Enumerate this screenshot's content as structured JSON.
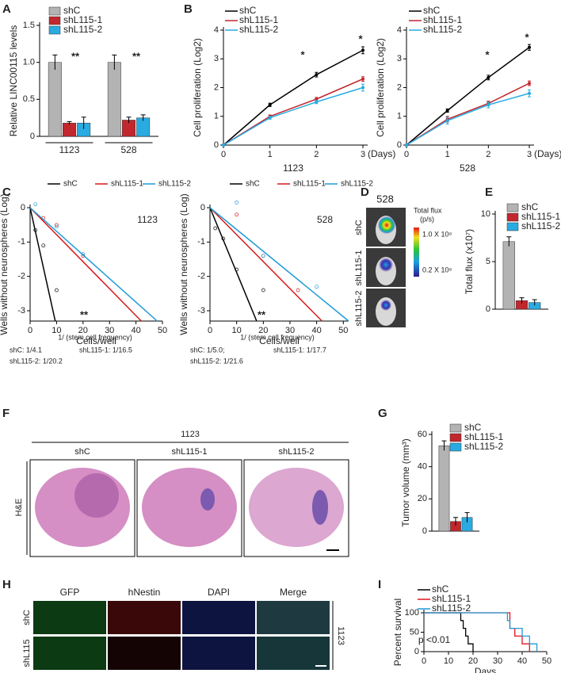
{
  "panel_labels": [
    "A",
    "B",
    "C",
    "D",
    "E",
    "F",
    "G",
    "H",
    "I"
  ],
  "chart_data": [
    {
      "type": "bar",
      "y_label": "Relative LINC00115 levels",
      "categories": [
        "1123",
        "528"
      ],
      "ylim": [
        0,
        1.5
      ],
      "yticks": [
        0,
        0.5,
        {
          "value": 1,
          "label": "1.0"
        },
        1.5
      ],
      "legend": "upper left",
      "annotations": [
        "**",
        "**"
      ],
      "series": [
        {
          "name": "shC",
          "color": "#b3b3b3",
          "values": [
            1.0,
            1.0
          ],
          "errors": [
            0.1,
            0.1
          ]
        },
        {
          "name": "shL115-1",
          "color": "#c1272d",
          "values": [
            0.18,
            0.22
          ],
          "errors": [
            0.02,
            0.04
          ]
        },
        {
          "name": "shL115-2",
          "color": "#29abe2",
          "values": [
            0.18,
            0.25
          ],
          "errors": [
            0.08,
            0.04
          ]
        }
      ]
    },
    {
      "type": "line",
      "y_label": "Cell proliferation (Log2)",
      "x_label": "(Days)",
      "subtitle": "1123",
      "x": [
        0,
        1,
        2,
        3
      ],
      "xlim": [
        0,
        3
      ],
      "xticks": [
        0,
        1,
        2,
        3
      ],
      "ylim": [
        0,
        4
      ],
      "yticks": [
        0,
        1,
        2,
        3,
        4
      ],
      "legend": "upper left",
      "annotations": [
        "*",
        "*"
      ],
      "series": [
        {
          "name": "shC",
          "color": "#000000",
          "values": [
            0,
            1.4,
            2.45,
            3.3
          ],
          "errors": [
            0,
            0.06,
            0.08,
            0.12
          ]
        },
        {
          "name": "shL115-1",
          "color": "#c1272d",
          "values": [
            0,
            1.0,
            1.6,
            2.3
          ],
          "errors": [
            0,
            0.05,
            0.06,
            0.08
          ]
        },
        {
          "name": "shL115-2",
          "color": "#29abe2",
          "values": [
            0,
            0.95,
            1.5,
            2.0
          ],
          "errors": [
            0,
            0.05,
            0.06,
            0.12
          ]
        }
      ]
    },
    {
      "type": "line",
      "y_label": "Cell proliferation (Log2)",
      "x_label": "(Days)",
      "subtitle": "528",
      "x": [
        0,
        1,
        2,
        3
      ],
      "xlim": [
        0,
        3
      ],
      "xticks": [
        0,
        1,
        2,
        3
      ],
      "ylim": [
        0,
        4
      ],
      "yticks": [
        0,
        1,
        2,
        3,
        4
      ],
      "legend": "upper left",
      "annotations": [
        "*",
        "*"
      ],
      "series": [
        {
          "name": "shC",
          "color": "#000000",
          "values": [
            0,
            1.2,
            2.35,
            3.4
          ],
          "errors": [
            0,
            0.06,
            0.08,
            0.1
          ]
        },
        {
          "name": "shL115-1",
          "color": "#c1272d",
          "values": [
            0,
            0.9,
            1.45,
            2.15
          ],
          "errors": [
            0,
            0.1,
            0.08,
            0.08
          ]
        },
        {
          "name": "shL115-2",
          "color": "#29abe2",
          "values": [
            0,
            0.85,
            1.4,
            1.8
          ],
          "errors": [
            0,
            0.12,
            0.1,
            0.12
          ]
        }
      ]
    },
    {
      "type": "dilution",
      "y_label": "Wells without neurospheres (Log)",
      "x_label": "Cells/well",
      "subtitle": "1123",
      "xlim": [
        0,
        50
      ],
      "xticks": [
        0,
        10,
        20,
        30,
        40,
        50
      ],
      "ylim": [
        -3.3,
        0
      ],
      "yticks": [
        0,
        -1,
        -2,
        -3
      ],
      "legend": "top",
      "annotations": [
        "**"
      ],
      "notes": [
        "1/ (stem cell frequency)",
        "shC: 1/4.1",
        "shL115-1: 1/16.5",
        "shL115-2: 1/20.2"
      ],
      "series": [
        {
          "name": "shC",
          "color": "#000000",
          "x": [
            0,
            9.5
          ],
          "values": [
            0,
            -3.3
          ],
          "points_x": [
            2,
            5,
            10
          ],
          "points_values": [
            -0.65,
            -1.1,
            -2.4
          ]
        },
        {
          "name": "shL115-1",
          "color": "#d7191c",
          "x": [
            0,
            42
          ],
          "values": [
            0,
            -3.3
          ],
          "points_x": [
            5,
            10,
            20
          ],
          "points_values": [
            -0.3,
            -0.5,
            -1.4
          ]
        },
        {
          "name": "shL115-2",
          "color": "#1f9bd7",
          "x": [
            0,
            48
          ],
          "values": [
            0,
            -3.3
          ],
          "points_x": [
            2,
            10,
            20
          ],
          "points_values": [
            0.1,
            -0.55,
            -1.35
          ]
        }
      ]
    },
    {
      "type": "dilution",
      "y_label": "Wells without neurospheres (Log)",
      "x_label": "Cells/well",
      "subtitle": "528",
      "xlim": [
        0,
        52
      ],
      "xticks": [
        0,
        10,
        20,
        30,
        40,
        50
      ],
      "ylim": [
        -3.3,
        0
      ],
      "yticks": [
        0,
        -1,
        -2,
        -3
      ],
      "legend": "top",
      "annotations": [
        "**"
      ],
      "notes": [
        "1/ (stem cell frequency)",
        "shC: 1/5.0;",
        "shL115-1: 1/17.7",
        "shL115-2: 1/21.6"
      ],
      "series": [
        {
          "name": "shC",
          "color": "#000000",
          "x": [
            0,
            17.5
          ],
          "values": [
            0,
            -3.3
          ],
          "points_x": [
            2,
            5,
            10,
            20
          ],
          "points_values": [
            -0.6,
            -0.9,
            -1.8,
            -2.4
          ]
        },
        {
          "name": "shL115-1",
          "color": "#d7191c",
          "x": [
            0,
            42
          ],
          "values": [
            0,
            -3.3
          ],
          "points_x": [
            10,
            20,
            33
          ],
          "points_values": [
            -0.2,
            -1.4,
            -2.4
          ]
        },
        {
          "name": "shL115-2",
          "color": "#1f9bd7",
          "x": [
            0,
            52
          ],
          "values": [
            0,
            -3.3
          ],
          "points_x": [
            10,
            20,
            40
          ],
          "points_values": [
            0.15,
            -1.4,
            -2.3
          ]
        }
      ]
    },
    {
      "type": "bar",
      "y_label": "Total flux (x10⁷)",
      "ylim": [
        0,
        10
      ],
      "yticks": [
        0,
        5,
        10
      ],
      "legend": "upper right",
      "series": [
        {
          "name": "shC",
          "color": "#b3b3b3",
          "values": [
            7.1
          ],
          "errors": [
            0.5
          ]
        },
        {
          "name": "shL115-1",
          "color": "#c1272d",
          "values": [
            0.9
          ],
          "errors": [
            0.3
          ]
        },
        {
          "name": "shL115-2",
          "color": "#29abe2",
          "values": [
            0.7
          ],
          "errors": [
            0.3
          ]
        }
      ]
    },
    {
      "type": "bar",
      "y_label": "Tumor volume (mm³)",
      "ylim": [
        0,
        60
      ],
      "yticks": [
        0,
        20,
        40,
        60
      ],
      "legend": "upper right",
      "series": [
        {
          "name": "shC",
          "color": "#b3b3b3",
          "values": [
            53
          ],
          "errors": [
            3
          ]
        },
        {
          "name": "shL115-1",
          "color": "#c1272d",
          "values": [
            6
          ],
          "errors": [
            2.5
          ]
        },
        {
          "name": "shL115-2",
          "color": "#29abe2",
          "values": [
            8.5
          ],
          "errors": [
            3
          ]
        }
      ]
    },
    {
      "type": "step",
      "y_label": "Percent survival",
      "x_label": "Days",
      "xlim": [
        0,
        50
      ],
      "xticks": [
        0,
        10,
        20,
        30,
        40,
        50
      ],
      "ylim": [
        0,
        100
      ],
      "yticks": [
        0,
        50,
        100
      ],
      "legend": "upper left",
      "annotations": [
        "p <0.01"
      ],
      "series": [
        {
          "name": "shC",
          "color": "#000000",
          "x": [
            0,
            15,
            16,
            17,
            18,
            20
          ],
          "values": [
            100,
            80,
            60,
            40,
            20,
            0
          ]
        },
        {
          "name": "shL115-1",
          "color": "#e0141e",
          "x": [
            0,
            35,
            37,
            40,
            43
          ],
          "values": [
            100,
            60,
            40,
            20,
            0
          ]
        },
        {
          "name": "shL115-2",
          "color": "#1f9bd7",
          "x": [
            0,
            34,
            35,
            40,
            43,
            46
          ],
          "values": [
            100,
            80,
            60,
            40,
            20,
            0
          ]
        }
      ]
    }
  ],
  "images": {
    "D": {
      "title": "528",
      "rows": [
        "shC",
        "shL115-1",
        "shL115-2"
      ],
      "colorbar_title": [
        "Total flux",
        "(p/s)"
      ],
      "colorbar_labels": [
        "1.0 X 10⁸",
        "0.2 X 10⁸"
      ]
    },
    "F": {
      "title": "1123",
      "columns": [
        "shC",
        "shL115-1",
        "shL115-2"
      ],
      "row": "H&E"
    },
    "H": {
      "columns": [
        "GFP",
        "hNestin",
        "DAPI",
        "Merge"
      ],
      "rows": [
        "shC",
        "shL115"
      ],
      "side": "1123"
    }
  }
}
